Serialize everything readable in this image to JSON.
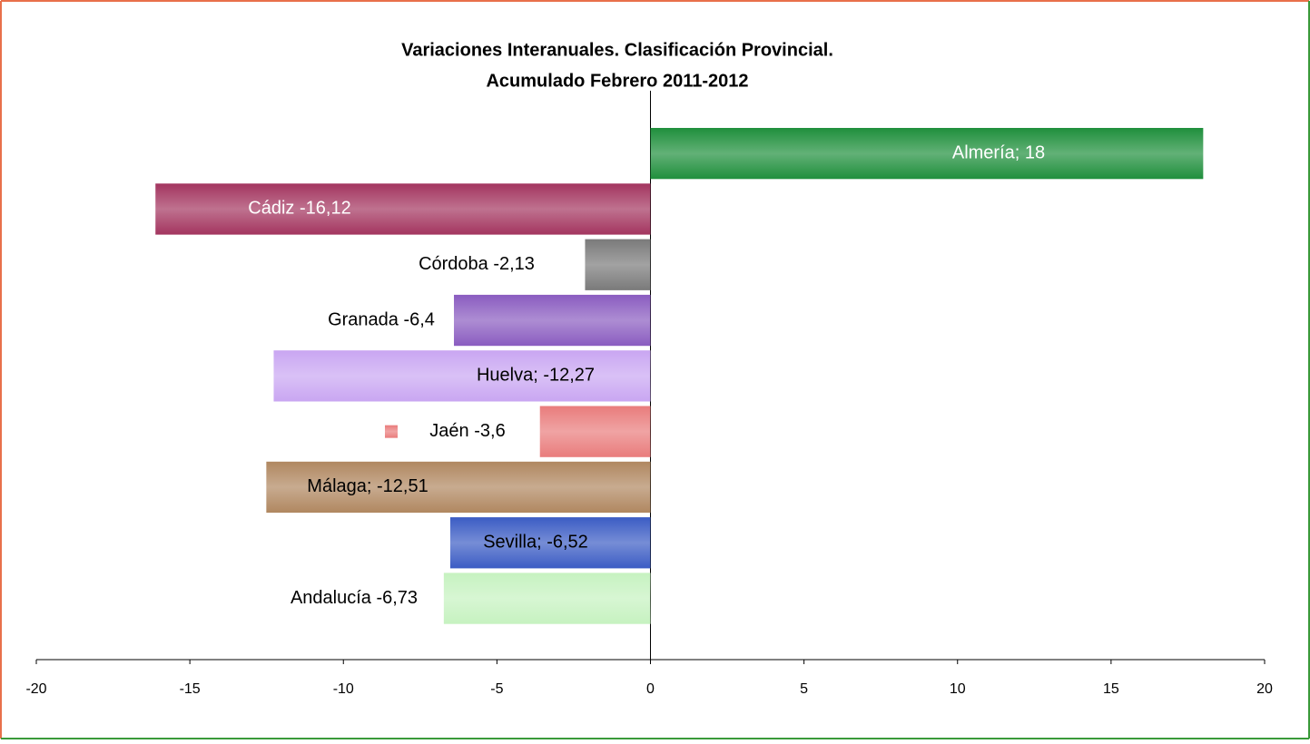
{
  "chart_data": {
    "type": "barh",
    "title": [
      "Variaciones Interanuales. Clasificación Provincial.",
      "Acumulado Febrero 2011-2012"
    ],
    "values": [
      18,
      -16.12,
      -2.13,
      -6.4,
      -12.27,
      -3.6,
      -12.51,
      -6.52,
      -6.73
    ],
    "value_labels": [
      "Almería; 18",
      "Cádiz -16,12",
      "Córdoba -2,13",
      "Granada -6,4",
      "Huelva; -12,27",
      "Jaén -3,6",
      "Málaga; -12,51",
      "Sevilla; -6,52",
      "Andalucía -6,73"
    ],
    "colors": [
      "#1f8f3c",
      "#a3355f",
      "#7a7a7a",
      "#8a5cc0",
      "#c9a6f2",
      "#e97c7c",
      "#b08760",
      "#3b5cc4",
      "#c6f2c0"
    ],
    "xlim": [
      -20,
      20
    ],
    "xticks": [
      -20,
      -15,
      -10,
      -5,
      0,
      5,
      10,
      15,
      20
    ]
  }
}
